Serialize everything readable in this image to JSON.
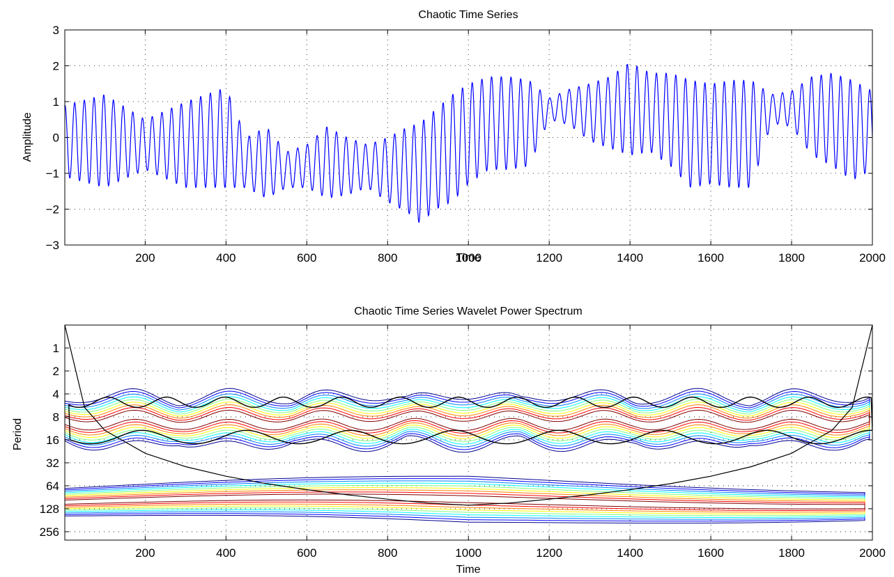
{
  "chart_data": [
    {
      "type": "line",
      "title": "Chaotic Time Series",
      "xlabel": "Time",
      "ylabel": "Amplitude",
      "xlim": [
        1,
        2000
      ],
      "ylim": [
        -3,
        3
      ],
      "xticks": [
        200,
        400,
        600,
        800,
        1000,
        1200,
        1400,
        1600,
        1800,
        2000
      ],
      "yticks": [
        -3,
        -2,
        -1,
        0,
        1,
        2,
        3
      ],
      "ytick_labels": [
        "−3",
        "−2",
        "−1",
        "0",
        "1",
        "2",
        "3"
      ],
      "grid": true,
      "line_color": "#0000ff",
      "oscillation_period": 24,
      "series": [
        {
          "x": [
            1,
            100,
            200,
            300,
            400,
            450,
            500,
            550,
            600,
            650,
            700,
            750,
            800,
            850,
            880,
            920,
            960,
            1000,
            1050,
            1100,
            1150,
            1200,
            1250,
            1300,
            1350,
            1400,
            1450,
            1500,
            1550,
            1600,
            1650,
            1700,
            1750,
            1800,
            1850,
            1900,
            1950,
            2000
          ],
          "center": [
            -0.1,
            -0.1,
            -0.2,
            -0.2,
            0.0,
            -0.7,
            -0.7,
            -0.9,
            -0.8,
            -0.7,
            -0.8,
            -0.8,
            -0.9,
            -0.9,
            -1.0,
            -0.6,
            -0.3,
            0.1,
            0.4,
            0.4,
            0.4,
            0.8,
            0.85,
            0.7,
            0.7,
            0.8,
            0.7,
            0.5,
            0.1,
            0.1,
            0.1,
            0.1,
            0.8,
            0.8,
            0.6,
            0.5,
            0.2,
            0.2
          ],
          "amplitude": [
            1.0,
            1.3,
            0.7,
            1.2,
            1.4,
            0.7,
            1.0,
            0.5,
            0.6,
            1.0,
            0.8,
            0.6,
            0.9,
            1.2,
            1.4,
            1.4,
            1.5,
            1.4,
            1.3,
            1.3,
            1.2,
            0.3,
            0.5,
            0.8,
            1.0,
            1.3,
            1.1,
            1.3,
            1.5,
            1.4,
            1.5,
            1.5,
            0.4,
            0.5,
            1.1,
            1.3,
            1.4,
            1.1
          ]
        }
      ]
    },
    {
      "type": "heatmap",
      "subtype": "contour",
      "title": "Chaotic Time Series Wavelet Power Spectrum",
      "xlabel": "Time",
      "ylabel": "Period",
      "xlim": [
        1,
        2000
      ],
      "ylim_period": [
        0.5,
        330
      ],
      "y_scale": "log2",
      "y_reversed": true,
      "xticks": [
        200,
        400,
        600,
        800,
        1000,
        1200,
        1400,
        1600,
        1800,
        2000
      ],
      "yticks": [
        1,
        2,
        4,
        8,
        16,
        32,
        64,
        128,
        256
      ],
      "grid": true,
      "contour_colors": [
        "#00008f",
        "#0000ff",
        "#0080ff",
        "#00ffff",
        "#80ff80",
        "#ffff00",
        "#ff8000",
        "#ff0000",
        "#800000"
      ],
      "significance_contour_color": "#000000",
      "cone_of_influence_color": "#000000",
      "cone_of_influence": {
        "x": [
          1,
          50,
          100,
          200,
          300,
          400,
          500,
          600,
          700,
          800,
          900,
          1000,
          1100,
          1200,
          1300,
          1400,
          1500,
          1600,
          1700,
          1800,
          1900,
          1950,
          2000
        ],
        "period": [
          0.5,
          6,
          12,
          24,
          36,
          48,
          60,
          72,
          84,
          96,
          108,
          115,
          108,
          96,
          84,
          72,
          60,
          48,
          36,
          24,
          12,
          6,
          0.5
        ]
      }
    }
  ]
}
